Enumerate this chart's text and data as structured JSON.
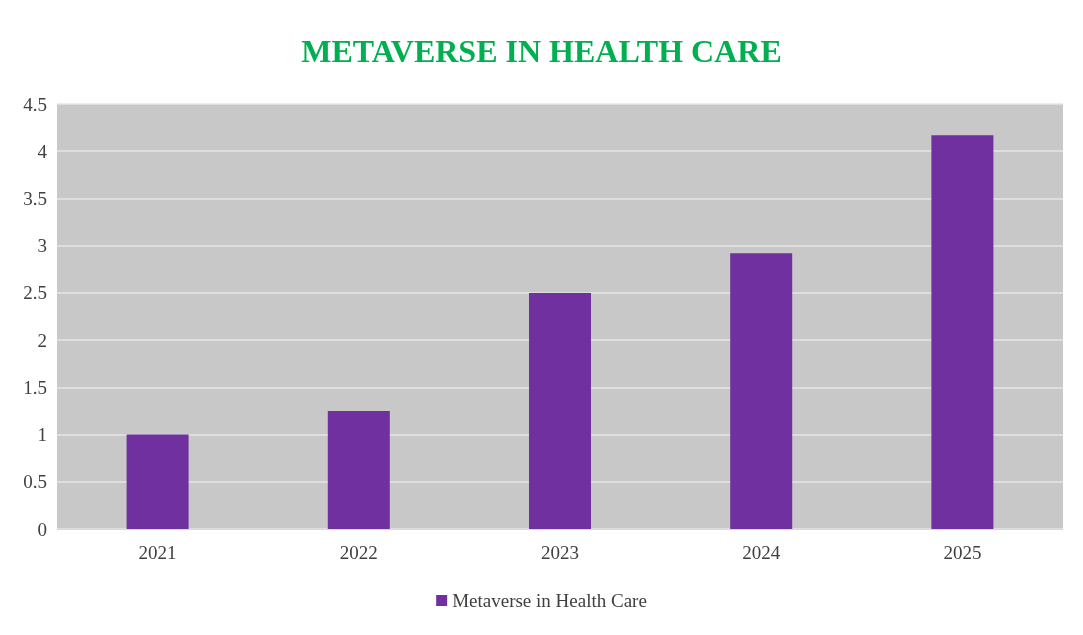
{
  "chart_data": {
    "type": "bar",
    "title": "METAVERSE IN HEALTH CARE",
    "categories": [
      "2021",
      "2022",
      "2023",
      "2024",
      "2025"
    ],
    "series": [
      {
        "name": "Metaverse in Health Care",
        "color": "#7030a0",
        "values": [
          1,
          1.25,
          2.5,
          2.92,
          4.17
        ]
      }
    ],
    "ylim": [
      0,
      4.5
    ],
    "yticks": [
      0,
      0.5,
      1,
      1.5,
      2,
      2.5,
      3,
      3.5,
      4,
      4.5
    ],
    "grid": "y",
    "legend": "bottom"
  }
}
